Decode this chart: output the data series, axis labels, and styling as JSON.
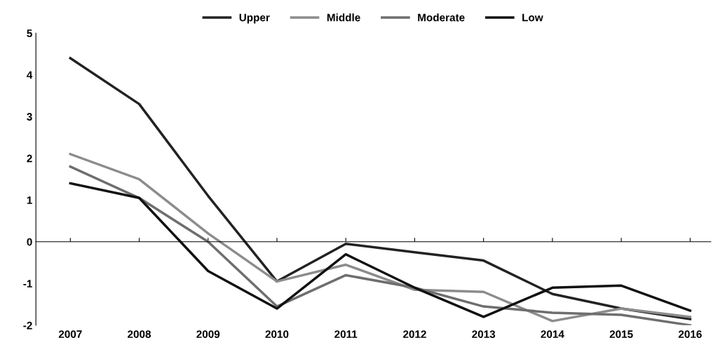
{
  "chart_data": {
    "type": "line",
    "categories": [
      "2007",
      "2008",
      "2009",
      "2010",
      "2011",
      "2012",
      "2013",
      "2014",
      "2015",
      "2016"
    ],
    "series": [
      {
        "name": "Upper",
        "color": "#222222",
        "values": [
          4.4,
          3.3,
          1.1,
          -0.95,
          -0.05,
          -0.25,
          -0.45,
          -1.25,
          -1.6,
          -1.85
        ]
      },
      {
        "name": "Middle",
        "color": "#8c8c8c",
        "values": [
          2.1,
          1.5,
          0.2,
          -0.95,
          -0.55,
          -1.15,
          -1.2,
          -1.9,
          -1.6,
          -1.8
        ]
      },
      {
        "name": "Moderate",
        "color": "#6e6e6e",
        "values": [
          1.8,
          1.05,
          0.0,
          -1.55,
          -0.8,
          -1.1,
          -1.55,
          -1.7,
          -1.75,
          -2.0
        ]
      },
      {
        "name": "Low",
        "color": "#111111",
        "values": [
          1.4,
          1.05,
          -0.7,
          -1.6,
          -0.3,
          -1.1,
          -1.8,
          -1.1,
          -1.05,
          -1.65
        ]
      }
    ],
    "ylim": [
      -2,
      5
    ],
    "yticks": [
      -2,
      -1,
      0,
      1,
      2,
      3,
      4,
      5
    ],
    "legend": "top",
    "marker": "none",
    "line_style": "solid"
  }
}
